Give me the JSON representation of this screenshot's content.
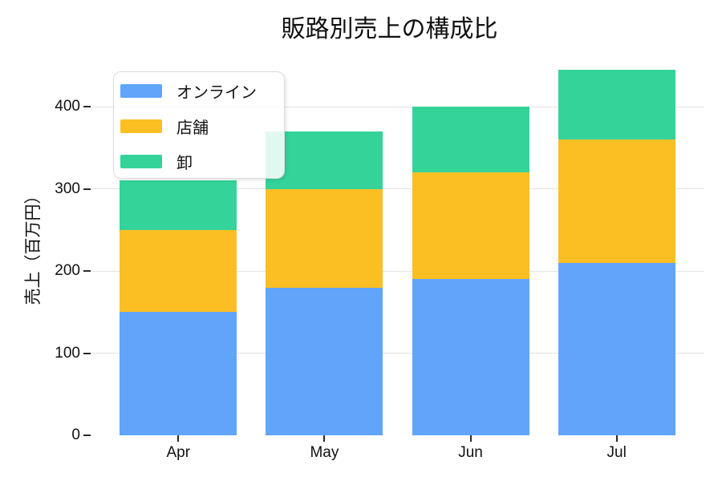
{
  "chart_data": {
    "type": "bar",
    "stacked": true,
    "title": "販路別売上の構成比",
    "ylabel": "売上（百万円）",
    "xlabel": "",
    "categories": [
      "Apr",
      "May",
      "Jun",
      "Jul"
    ],
    "series": [
      {
        "name": "オンライン",
        "color": "#60A5FA",
        "values": [
          150,
          180,
          190,
          210
        ]
      },
      {
        "name": "店舗",
        "color": "#FBBF24",
        "values": [
          100,
          120,
          130,
          150
        ]
      },
      {
        "name": "卸",
        "color": "#34D399",
        "values": [
          60,
          70,
          80,
          85
        ]
      }
    ],
    "yticks": [
      0,
      100,
      200,
      300,
      400
    ],
    "ylim": [
      0,
      460
    ],
    "grid": true,
    "legend_position": "upper-left"
  }
}
